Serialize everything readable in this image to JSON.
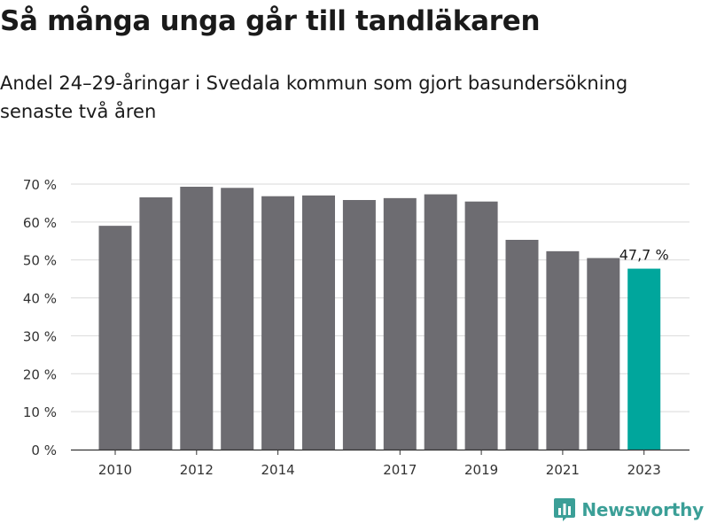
{
  "header": {
    "title": "Så många unga går till tandläkaren",
    "subtitle": "Andel 24–29-åringar i Svedala kommun som gjort basundersökning senaste två åren"
  },
  "branding": {
    "logo_text": "Newsworthy",
    "logo_icon": "bar-chart-logo-icon",
    "logo_color": "#3b9f97"
  },
  "colors": {
    "bar": "#6d6c71",
    "highlight": "#00a69c",
    "grid": "#d9d9d9",
    "axis": "#333333"
  },
  "chart_data": {
    "type": "bar",
    "title": "Så många unga går till tandläkaren",
    "subtitle": "Andel 24–29-åringar i Svedala kommun som gjort basundersökning senaste två åren",
    "categories": [
      "2010",
      "2011",
      "2012",
      "2013",
      "2014",
      "2015",
      "2016",
      "2017",
      "2018",
      "2019",
      "2020",
      "2021",
      "2022",
      "2023"
    ],
    "values": [
      59.0,
      66.5,
      69.3,
      69.0,
      66.8,
      67.0,
      65.8,
      66.3,
      67.3,
      65.4,
      55.3,
      52.3,
      50.5,
      47.7
    ],
    "x_tick_labels": [
      "2010",
      "",
      "2012",
      "",
      "2014",
      "",
      "",
      "2017",
      "",
      "2019",
      "",
      "2021",
      "",
      "2023"
    ],
    "y_ticks": [
      "0 %",
      "10 %",
      "20 %",
      "30 %",
      "40 %",
      "50 %",
      "60 %",
      "70 %"
    ],
    "ylim": [
      0,
      70
    ],
    "grid": true,
    "highlight_index": 13,
    "data_labels": [
      {
        "index": 13,
        "text": "47,7 %"
      }
    ],
    "xlabel": "",
    "ylabel": ""
  }
}
